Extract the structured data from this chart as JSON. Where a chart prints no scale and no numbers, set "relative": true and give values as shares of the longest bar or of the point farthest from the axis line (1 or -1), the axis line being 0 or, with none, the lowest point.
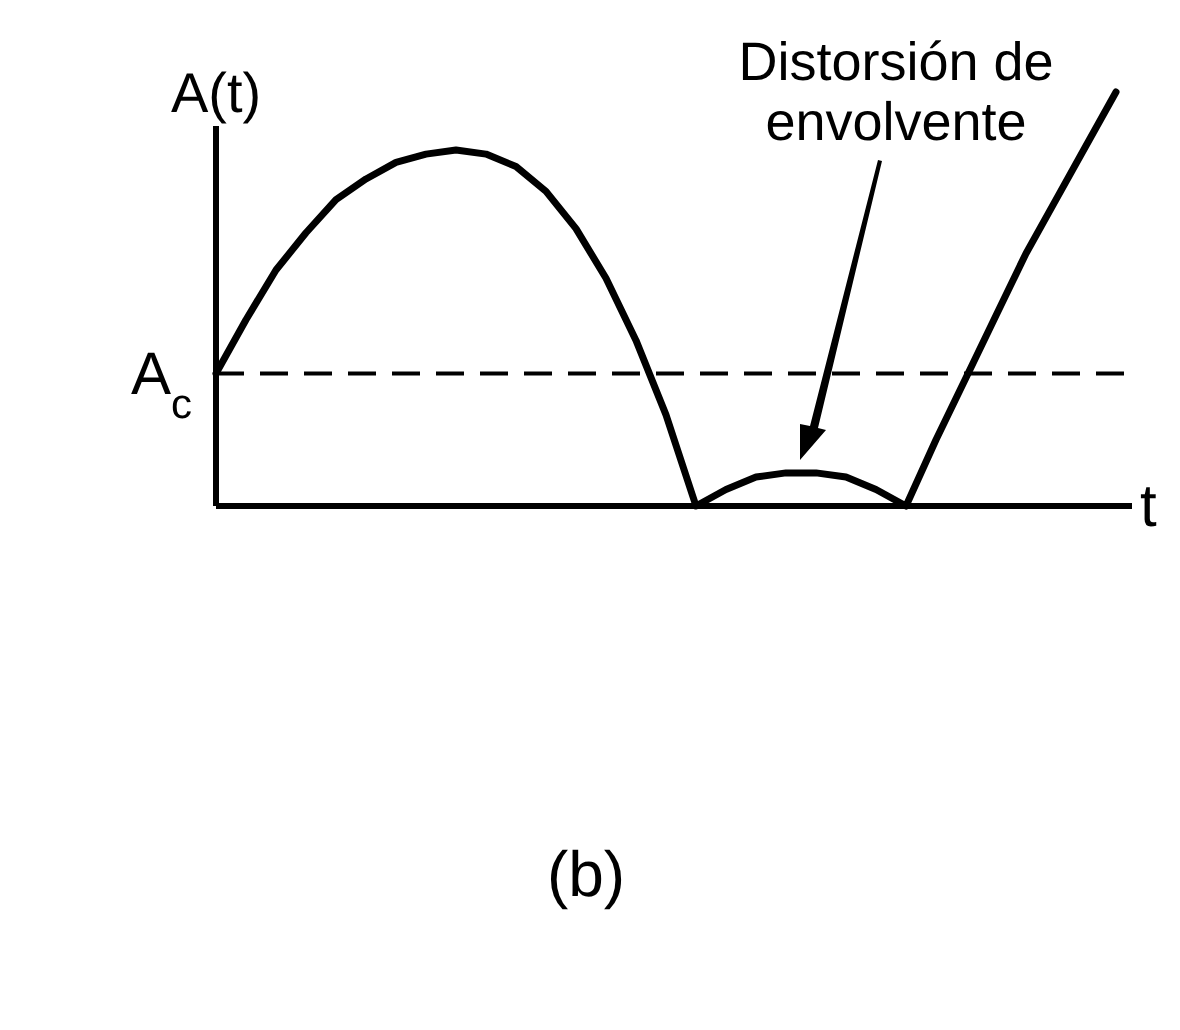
{
  "chart_data": {
    "type": "line",
    "relative": true,
    "ylabel": "A(t)",
    "xlabel": "t",
    "categories": [
      null,
      null,
      null,
      null,
      null,
      null,
      null,
      null,
      null,
      null,
      null,
      null,
      null,
      null,
      null,
      null,
      null,
      null,
      null,
      null,
      null,
      null,
      null,
      null,
      null,
      null,
      null,
      null,
      null,
      null,
      null
    ],
    "series": [
      {
        "color": "#000000",
        "values": [
          0.32,
          0.45,
          0.57,
          0.66,
          0.74,
          0.79,
          0.83,
          0.85,
          0.86,
          0.85,
          0.82,
          0.76,
          0.67,
          0.55,
          0.4,
          0.22,
          0,
          0.04,
          0.07,
          0.08,
          0.08,
          0.07,
          0.04,
          0,
          0.16,
          0.31,
          0.46,
          0.61,
          0.74,
          0.87,
          1
        ]
      }
    ],
    "ref_lines": [
      {
        "axis": "y",
        "value": 0.32,
        "label": "A$_{c}$",
        "line_style": "dashed",
        "color": "#000000"
      }
    ],
    "annotations": [
      "Distorsión de envolvente",
      "(b)"
    ]
  }
}
